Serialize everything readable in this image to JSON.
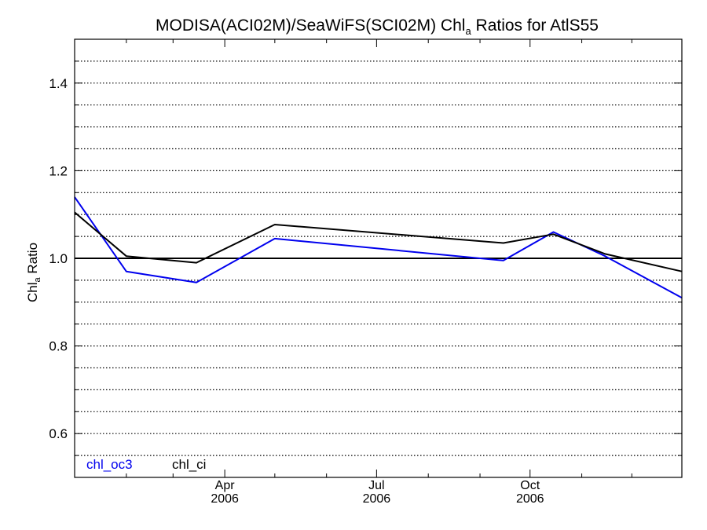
{
  "chart_data": {
    "type": "line",
    "title": {
      "prefix": "MODISA(ACI02M)/SeaWiFS(SCI02M)  Chl",
      "subscript": "a",
      "suffix": " Ratios for AtlS55"
    },
    "ylabel": {
      "main": "Chl",
      "subscript": "a",
      "suffix": " Ratio"
    },
    "ylim": [
      0.5,
      1.5
    ],
    "yticks": [
      0.6,
      0.8,
      1.0,
      1.2,
      1.4
    ],
    "ytick_labels": [
      "0.6",
      "0.8",
      "1.0",
      "1.2",
      "1.4"
    ],
    "xlim": [
      "2006-01-01",
      "2006-12-31"
    ],
    "xticks": [
      {
        "date": "2006-04-01",
        "month": "Apr",
        "year": "2006"
      },
      {
        "date": "2006-07-01",
        "month": "Jul",
        "year": "2006"
      },
      {
        "date": "2006-10-01",
        "month": "Oct",
        "year": "2006"
      }
    ],
    "grid": "dotted horizontal",
    "reference_line": 1.0,
    "legend_position": "bottom-left",
    "series": [
      {
        "name": "chl_oc3",
        "color": "#0000ee",
        "x": [
          "2006-01-01",
          "2006-02-01",
          "2006-03-15",
          "2006-05-01",
          "2006-09-15",
          "2006-10-15",
          "2006-11-15",
          "2006-12-31"
        ],
        "values": [
          1.14,
          0.97,
          0.945,
          1.045,
          0.995,
          1.06,
          1.005,
          0.91
        ]
      },
      {
        "name": "chl_ci",
        "color": "#000000",
        "x": [
          "2006-01-01",
          "2006-02-01",
          "2006-03-15",
          "2006-05-01",
          "2006-09-15",
          "2006-10-15",
          "2006-11-15",
          "2006-12-31"
        ],
        "values": [
          1.105,
          1.005,
          0.99,
          1.077,
          1.035,
          1.055,
          1.01,
          0.97
        ]
      }
    ]
  }
}
